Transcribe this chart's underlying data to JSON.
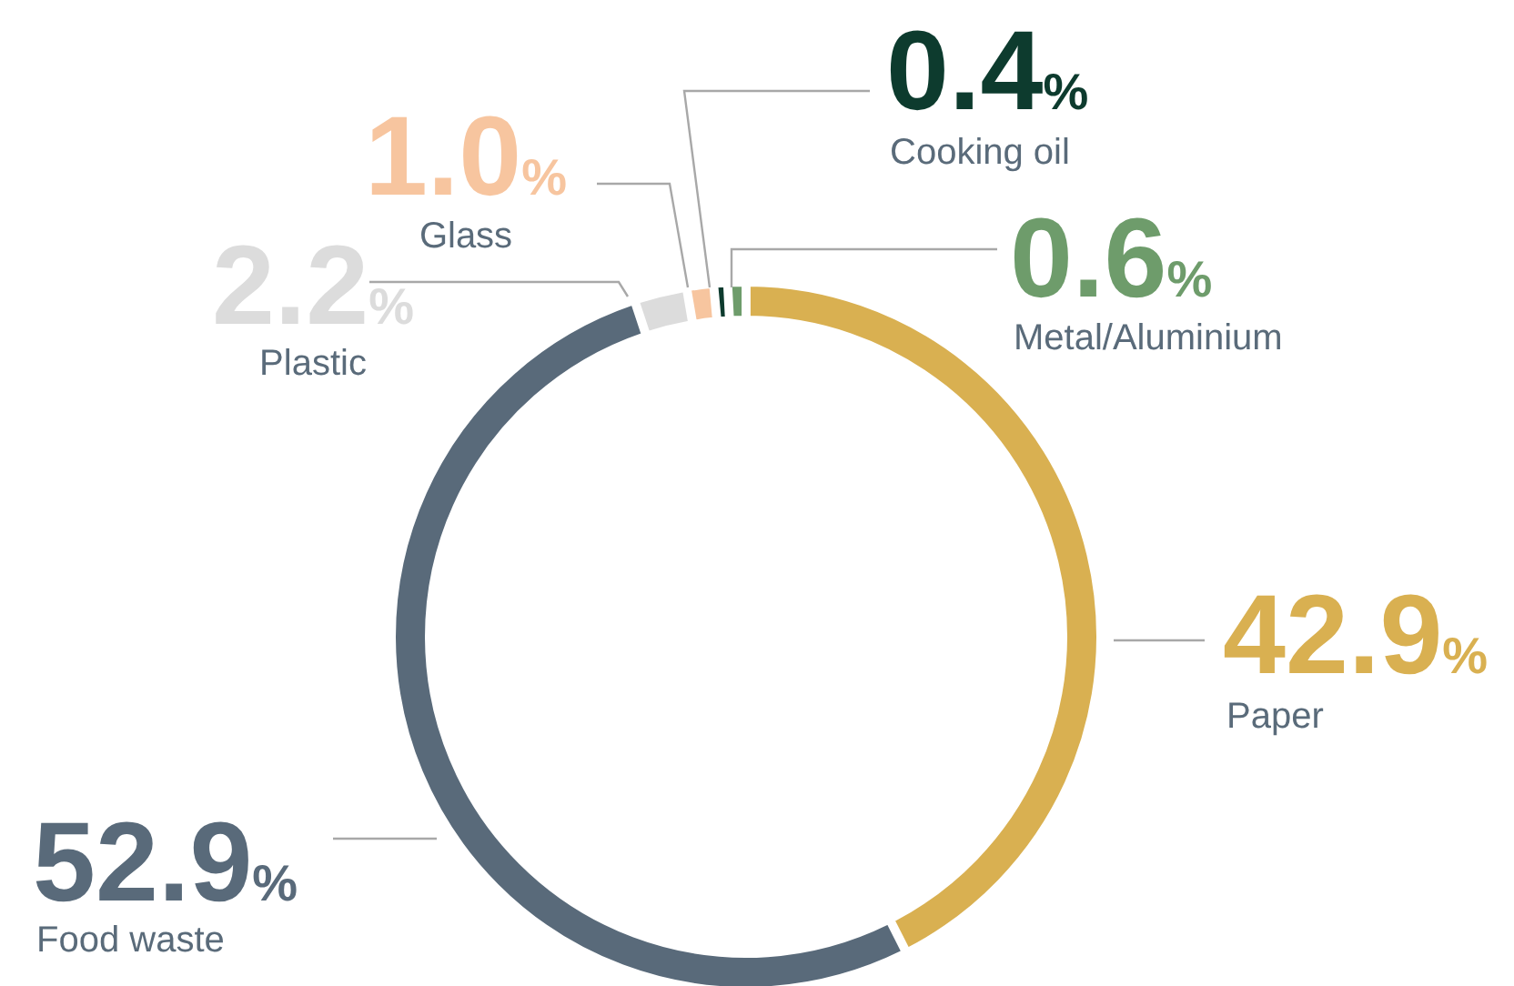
{
  "chart_data": {
    "type": "donut",
    "categories": [
      "Paper",
      "Food waste",
      "Plastic",
      "Glass",
      "Cooking oil",
      "Metal/Aluminium"
    ],
    "values": [
      42.9,
      52.9,
      2.2,
      1.0,
      0.4,
      0.6
    ],
    "colors": [
      "#d9b051",
      "#596a7a",
      "#dcdcdc",
      "#f7c59f",
      "#0d3b2e",
      "#6e9c6b"
    ],
    "value_labels": [
      "42.9%",
      "52.9%",
      "2.2%",
      "1.0%",
      "0.4%",
      "0.6%"
    ]
  }
}
